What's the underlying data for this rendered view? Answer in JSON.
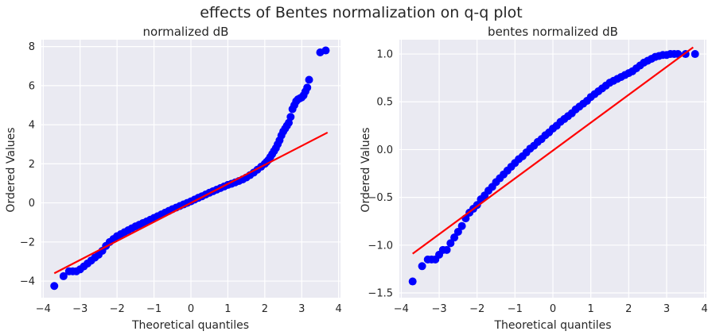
{
  "figure": {
    "title": "effects of Bentes normalization on q-q plot"
  },
  "chart_data": [
    {
      "type": "scatter",
      "title": "normalized dB",
      "xlabel": "Theoretical quantiles",
      "ylabel": "Ordered Values",
      "xlim": [
        -4.05,
        4.05
      ],
      "ylim": [
        -4.85,
        8.35
      ],
      "xticks": [
        -4,
        -3,
        -2,
        -1,
        0,
        1,
        2,
        3,
        4
      ],
      "xtick_labels": [
        "−4",
        "−3",
        "−2",
        "−1",
        "0",
        "1",
        "2",
        "3",
        "4"
      ],
      "yticks": [
        -4,
        -2,
        0,
        2,
        4,
        6,
        8
      ],
      "ytick_labels": [
        "−4",
        "−2",
        "0",
        "2",
        "4",
        "6",
        "8"
      ],
      "grid": true,
      "marker_color": "#0000ff",
      "line_color": "#ff0000",
      "fit_line": {
        "x": [
          -3.7,
          3.7
        ],
        "y": [
          -3.6,
          3.6
        ]
      },
      "points": {
        "x": [
          -3.7,
          -3.45,
          -3.3,
          -3.2,
          -3.1,
          -3.0,
          -2.9,
          -2.8,
          -2.7,
          -2.6,
          -2.5,
          -2.4,
          -2.3,
          -2.2,
          -2.1,
          -2.0,
          -1.9,
          -1.8,
          -1.7,
          -1.6,
          -1.5,
          -1.4,
          -1.3,
          -1.2,
          -1.1,
          -1.0,
          -0.9,
          -0.8,
          -0.7,
          -0.6,
          -0.5,
          -0.4,
          -0.3,
          -0.2,
          -0.1,
          0.0,
          0.1,
          0.2,
          0.3,
          0.4,
          0.5,
          0.6,
          0.7,
          0.8,
          0.9,
          1.0,
          1.1,
          1.2,
          1.3,
          1.4,
          1.5,
          1.6,
          1.7,
          1.8,
          1.9,
          2.0,
          2.05,
          2.1,
          2.15,
          2.2,
          2.25,
          2.3,
          2.35,
          2.4,
          2.45,
          2.5,
          2.55,
          2.6,
          2.65,
          2.7,
          2.75,
          2.8,
          2.85,
          2.9,
          2.95,
          3.0,
          3.05,
          3.1,
          3.15,
          3.2,
          3.5,
          3.65
        ],
        "y": [
          -4.25,
          -3.75,
          -3.5,
          -3.5,
          -3.5,
          -3.4,
          -3.25,
          -3.1,
          -2.95,
          -2.8,
          -2.65,
          -2.45,
          -2.2,
          -2.0,
          -1.85,
          -1.7,
          -1.6,
          -1.5,
          -1.4,
          -1.3,
          -1.2,
          -1.12,
          -1.03,
          -0.95,
          -0.86,
          -0.77,
          -0.68,
          -0.59,
          -0.5,
          -0.41,
          -0.32,
          -0.24,
          -0.16,
          -0.08,
          0.0,
          0.08,
          0.17,
          0.26,
          0.34,
          0.43,
          0.52,
          0.6,
          0.68,
          0.76,
          0.84,
          0.92,
          0.98,
          1.05,
          1.12,
          1.2,
          1.3,
          1.42,
          1.55,
          1.7,
          1.85,
          2.0,
          2.1,
          2.2,
          2.35,
          2.5,
          2.65,
          2.8,
          3.0,
          3.2,
          3.45,
          3.65,
          3.8,
          3.95,
          4.1,
          4.4,
          4.8,
          5.0,
          5.2,
          5.3,
          5.35,
          5.4,
          5.5,
          5.7,
          5.9,
          6.3,
          7.7,
          7.8
        ]
      }
    },
    {
      "type": "scatter",
      "title": "bentes normalized dB",
      "xlabel": "Theoretical quantiles",
      "ylabel": "Ordered Values",
      "xlim": [
        -4.05,
        4.05
      ],
      "ylim": [
        -1.55,
        1.15
      ],
      "xticks": [
        -4,
        -3,
        -2,
        -1,
        0,
        1,
        2,
        3,
        4
      ],
      "xtick_labels": [
        "−4",
        "−3",
        "−2",
        "−1",
        "0",
        "1",
        "2",
        "3",
        "4"
      ],
      "yticks": [
        -1.5,
        -1.0,
        -0.5,
        0.0,
        0.5,
        1.0
      ],
      "ytick_labels": [
        "−1.5",
        "−1.0",
        "−0.5",
        "0.0",
        "0.5",
        "1.0"
      ],
      "grid": true,
      "marker_color": "#0000ff",
      "line_color": "#ff0000",
      "fit_line": {
        "x": [
          -3.7,
          3.7
        ],
        "y": [
          -1.09,
          1.07
        ]
      },
      "points": {
        "x": [
          -3.7,
          -3.45,
          -3.3,
          -3.2,
          -3.1,
          -3.0,
          -2.9,
          -2.8,
          -2.7,
          -2.6,
          -2.5,
          -2.4,
          -2.3,
          -2.2,
          -2.1,
          -2.0,
          -1.9,
          -1.8,
          -1.7,
          -1.6,
          -1.5,
          -1.4,
          -1.3,
          -1.2,
          -1.1,
          -1.0,
          -0.9,
          -0.8,
          -0.7,
          -0.6,
          -0.5,
          -0.4,
          -0.3,
          -0.2,
          -0.1,
          0.0,
          0.1,
          0.2,
          0.3,
          0.4,
          0.5,
          0.6,
          0.7,
          0.8,
          0.9,
          1.0,
          1.1,
          1.2,
          1.3,
          1.4,
          1.5,
          1.6,
          1.7,
          1.8,
          1.9,
          2.0,
          2.1,
          2.2,
          2.3,
          2.4,
          2.5,
          2.6,
          2.7,
          2.8,
          2.9,
          3.0,
          3.1,
          3.2,
          3.3,
          3.5,
          3.75
        ],
        "y": [
          -1.38,
          -1.22,
          -1.15,
          -1.15,
          -1.15,
          -1.1,
          -1.05,
          -1.05,
          -0.98,
          -0.92,
          -0.86,
          -0.8,
          -0.72,
          -0.66,
          -0.62,
          -0.58,
          -0.52,
          -0.48,
          -0.43,
          -0.39,
          -0.34,
          -0.3,
          -0.26,
          -0.22,
          -0.18,
          -0.14,
          -0.1,
          -0.07,
          -0.03,
          0.01,
          0.04,
          0.08,
          0.11,
          0.15,
          0.18,
          0.22,
          0.25,
          0.29,
          0.32,
          0.35,
          0.38,
          0.42,
          0.45,
          0.48,
          0.51,
          0.55,
          0.58,
          0.61,
          0.64,
          0.67,
          0.7,
          0.72,
          0.74,
          0.76,
          0.78,
          0.8,
          0.82,
          0.85,
          0.88,
          0.91,
          0.93,
          0.95,
          0.97,
          0.98,
          0.99,
          0.99,
          1.0,
          1.0,
          1.0,
          1.0,
          1.0
        ]
      }
    }
  ]
}
